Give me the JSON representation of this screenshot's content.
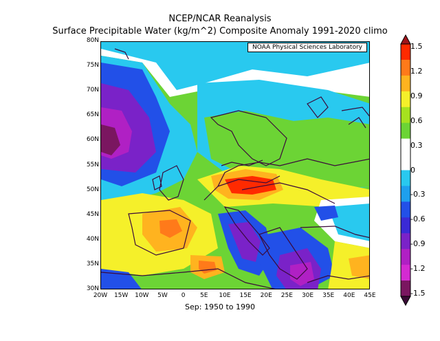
{
  "title_line1": "NCEP/NCAR Reanalysis",
  "title_line2": "Surface Precipitable Water (kg/m^2) Composite Anomaly 1991-2020 climo",
  "credit": "NOAA Physical Sciences Laboratory",
  "footer": "Sep: 1950 to 1990",
  "lat_labels": [
    "80N",
    "75N",
    "70N",
    "65N",
    "60N",
    "55N",
    "50N",
    "45N",
    "40N",
    "35N",
    "30N"
  ],
  "lon_labels": [
    "20W",
    "15W",
    "10W",
    "5W",
    "0",
    "5E",
    "10E",
    "15E",
    "20E",
    "25E",
    "30E",
    "35E",
    "40E",
    "45E"
  ],
  "colorbar": {
    "labels": [
      "1.5",
      "1.2",
      "0.9",
      "0.6",
      "0.3",
      "0",
      "-0.3",
      "-0.6",
      "-0.9",
      "-1.2",
      "-1.5"
    ],
    "colors": [
      "#ff2a00",
      "#ff7a1a",
      "#ffb31f",
      "#f5f02a",
      "#a6e21f",
      "#6cd435",
      "#ffffff",
      "#ffffff",
      "#29c9ef",
      "#1ea0ee",
      "#2250e8",
      "#3a2ad6",
      "#7a22c8",
      "#b020c4",
      "#d42ad2",
      "#7a1660"
    ]
  },
  "map_extent": {
    "lon": [
      -20,
      45
    ],
    "lat": [
      30,
      80
    ]
  }
}
